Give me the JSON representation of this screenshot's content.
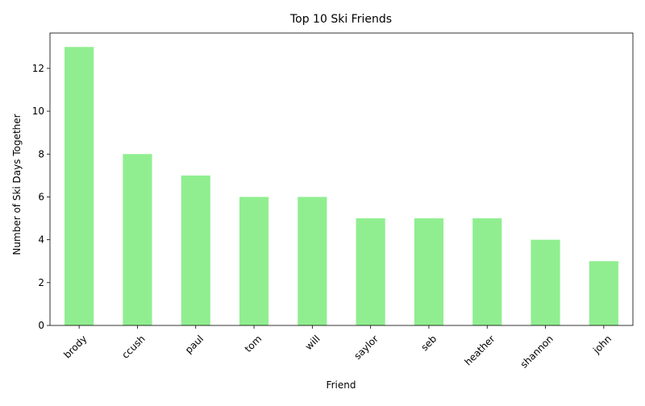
{
  "chart_data": {
    "type": "bar",
    "title": "Top 10 Ski Friends",
    "xlabel": "Friend",
    "ylabel": "Number of Ski Days Together",
    "categories": [
      "brody",
      "ccush",
      "paul",
      "tom",
      "will",
      "saylor",
      "seb",
      "heather",
      "shannon",
      "john"
    ],
    "values": [
      13,
      8,
      7,
      6,
      6,
      5,
      5,
      5,
      4,
      3
    ],
    "ylim": [
      0,
      13.65
    ],
    "yticks": [
      0,
      2,
      4,
      6,
      8,
      10,
      12
    ],
    "grid": false,
    "legend": "none",
    "bar_color": "#90ee90"
  }
}
